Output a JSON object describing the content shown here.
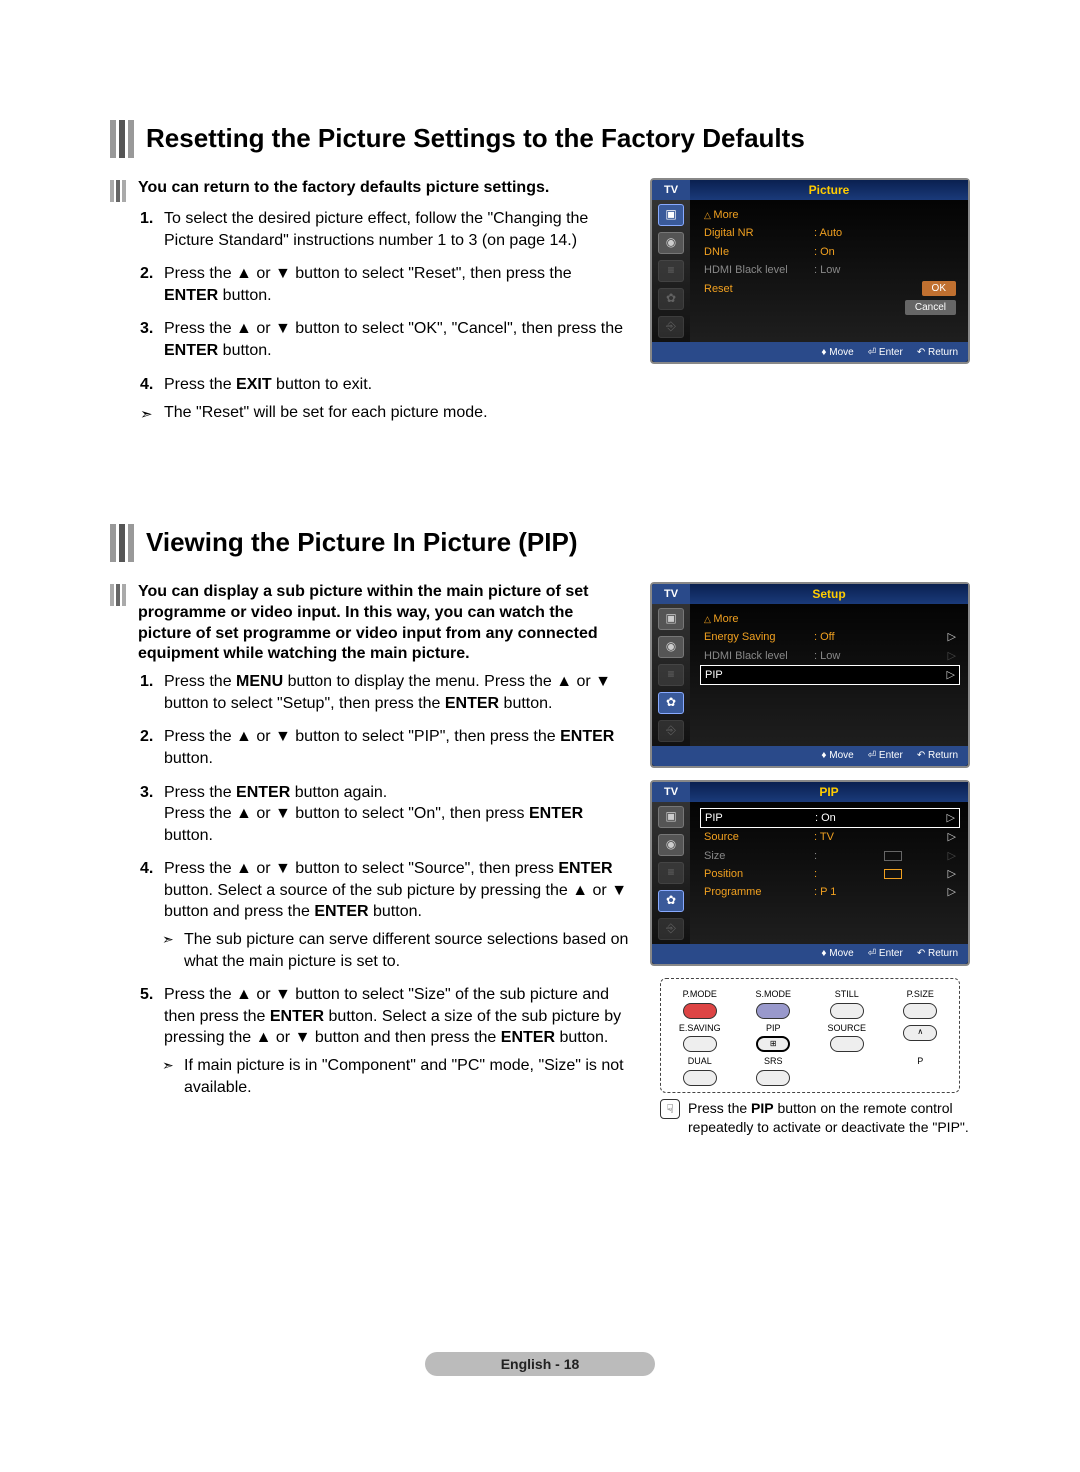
{
  "section1": {
    "title": "Resetting the Picture Settings to the Factory Defaults",
    "lead": "You can return to the factory defaults picture settings.",
    "steps": [
      "To select the desired picture effect, follow the \"Changing the Picture Standard\" instructions number 1 to 3 (on page 14.)",
      "Press the ▲ or ▼ button to select \"Reset\", then press the ENTER button.",
      "Press the ▲ or ▼ button to select \"OK\", \"Cancel\", then press the ENTER button.",
      "Press the EXIT button to exit."
    ],
    "step2_bold": "ENTER",
    "step3_bold": "ENTER",
    "step4_bold": "EXIT",
    "note": "The \"Reset\" will be set for each picture mode."
  },
  "section2": {
    "title": "Viewing the Picture In Picture (PIP)",
    "lead": "You can display a sub picture within the main picture of set programme or video input. In this way, you can watch the picture of set programme or video input from any connected equipment while watching the main picture.",
    "step1a": "Press the ",
    "step1_menu": "MENU",
    "step1b": " button to display the menu. Press the ▲ or ▼ button to select \"Setup\", then press the ",
    "step1_enter": "ENTER",
    "step1c": " button.",
    "step2a": "Press the ▲ or ▼ button to select \"PIP\", then press the ",
    "step2_enter": "ENTER",
    "step2b": " button.",
    "step3a": "Press the ",
    "step3_enter1": "ENTER",
    "step3b": " button again.",
    "step3c": "Press the ▲ or ▼ button to select \"On\", then press ",
    "step3_enter2": "ENTER",
    "step3d": " button.",
    "step4a": "Press the ▲ or ▼ button to select \"Source\", then press ",
    "step4_enter1": "ENTER",
    "step4b": " button. Select a source of the sub picture by pressing the ▲ or ▼ button and press the ",
    "step4_enter2": "ENTER",
    "step4c": " button.",
    "step4_note": "The sub picture can serve different source selections based on what the main picture is set to.",
    "step5a": "Press the ▲ or ▼ button to select \"Size\" of the sub picture and then press the ",
    "step5_enter1": "ENTER",
    "step5b": " button. Select a size of the sub picture by pressing the ▲ or ▼ button and then press the ",
    "step5_enter2": "ENTER",
    "step5c": " button.",
    "step5_note": "If main picture is in \"Component\" and \"PC\" mode, \"Size\" is not available."
  },
  "osd1": {
    "tv": "TV",
    "title": "Picture",
    "more": "More",
    "r1_label": "Digital NR",
    "r1_value": ": Auto",
    "r2_label": "DNIe",
    "r2_value": ": On",
    "r3_label": "HDMI Black level",
    "r3_value": ": Low",
    "r4_label": "Reset",
    "btn_ok": "OK",
    "btn_cancel": "Cancel",
    "move": "Move",
    "enter": "Enter",
    "return": "Return"
  },
  "osd2": {
    "tv": "TV",
    "title": "Setup",
    "more": "More",
    "r1_label": "Energy Saving",
    "r1_value": ": Off",
    "r2_label": "HDMI Black level",
    "r2_value": ": Low",
    "r3_label": "PIP",
    "move": "Move",
    "enter": "Enter",
    "return": "Return"
  },
  "osd3": {
    "tv": "TV",
    "title": "PIP",
    "r1_label": "PIP",
    "r1_value": ": On",
    "r2_label": "Source",
    "r2_value": ": TV",
    "r3_label": "Size",
    "r3_value": ":",
    "r4_label": "Position",
    "r4_value": ":",
    "r5_label": "Programme",
    "r5_value": ": P 1",
    "move": "Move",
    "enter": "Enter",
    "return": "Return"
  },
  "remote": {
    "labels": [
      "P.MODE",
      "S.MODE",
      "STILL",
      "P.SIZE",
      "E.SAVING",
      "PIP",
      "SOURCE",
      "",
      "DUAL",
      "SRS",
      "",
      "P"
    ],
    "note_a": "Press the ",
    "note_bold": "PIP",
    "note_b": " button on the remote control repeatedly to activate or deactivate the \"PIP\"."
  },
  "footer": {
    "lang": "English - ",
    "page": "18"
  },
  "colors": {
    "title_bar_light": "#999999",
    "title_bar_dark": "#555555",
    "osd_header_blue": "#2a4a8a",
    "osd_title_yellow": "#ffcc00",
    "osd_text_orange": "#f0a020",
    "osd_btn_orange": "#c07030",
    "footer_pill": "#bbbbbb"
  }
}
